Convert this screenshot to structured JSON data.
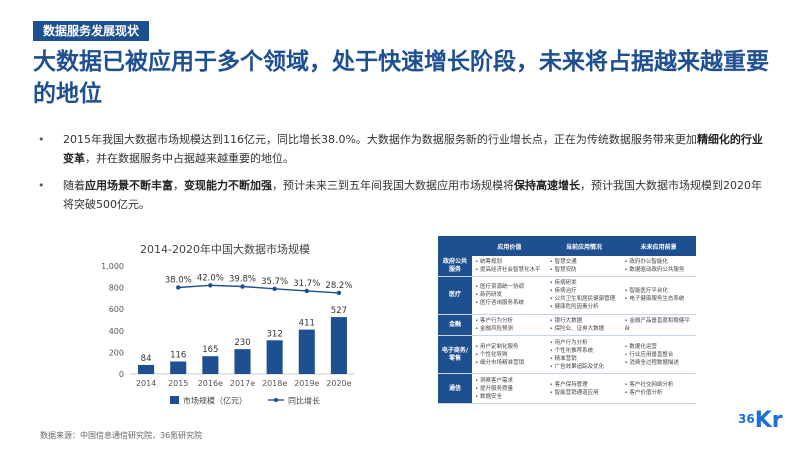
{
  "section_tag": "数据服务发展现状",
  "headline": "大数据已被应用于多个领域，处于快速增长阶段，未来将占据越来越重要的地位",
  "bullets": [
    {
      "parts": [
        {
          "t": "2015年我国大数据市场规模达到116亿元，同比增长38.0%。大数据作为数据服务新的行业增长点，正在为传统数据服务带来更加",
          "b": false
        },
        {
          "t": "精细化的行业变革",
          "b": true
        },
        {
          "t": "，并在数据服务中占据越来越重要的地位。",
          "b": false
        }
      ]
    },
    {
      "parts": [
        {
          "t": "随着",
          "b": false
        },
        {
          "t": "应用场景不断丰富",
          "b": true
        },
        {
          "t": "，",
          "b": false
        },
        {
          "t": "变现能力不断加强",
          "b": true
        },
        {
          "t": "，预计未来三到五年间我国大数据应用市场规模将",
          "b": false
        },
        {
          "t": "保持高速增长",
          "b": true
        },
        {
          "t": "，预计我国大数据市场规模到2020年将突破500亿元。",
          "b": false
        }
      ]
    }
  ],
  "chart_data": {
    "type": "bar",
    "title": "2014-2020年中国大数据市场规模",
    "categories": [
      "2014",
      "2015",
      "2016e",
      "2017e",
      "2018e",
      "2019e",
      "2020e"
    ],
    "series": [
      {
        "name": "市场规模（亿元）",
        "type": "bar",
        "values": [
          84,
          116,
          165,
          230,
          312,
          411,
          527
        ]
      },
      {
        "name": "同比增长",
        "type": "line",
        "values": [
          null,
          38.0,
          42.0,
          39.8,
          35.7,
          31.7,
          28.2
        ],
        "labels": [
          "",
          "38.0%",
          "42.0%",
          "39.8%",
          "35.7%",
          "31.7%",
          "28.2%"
        ]
      }
    ],
    "yticks": [
      "0",
      "200",
      "400",
      "600",
      "800",
      "1,000"
    ],
    "ylim": [
      0,
      1000
    ],
    "bar_color": "#1d4f91",
    "line_color": "#1d4f91",
    "legend_position": "bottom"
  },
  "table": {
    "headers": [
      "",
      "应用价值",
      "当前应用情况",
      "未来应用前景"
    ],
    "rows": [
      {
        "cat": "政府公共服务",
        "c1": [
          "统筹规划",
          "提高经济社会智慧化水平"
        ],
        "c2": [
          "智慧交通",
          "智慧安防"
        ],
        "c3": [
          "政府办公智能化",
          "数据驱动政府公共服务"
        ]
      },
      {
        "cat": "医疗",
        "c1": [
          "医疗资源统一协调",
          "新药研发",
          "医疗咨询服务系统"
        ],
        "c2": [
          "疾病研发",
          "疾病治疗",
          "公共卫生和居民健康管理",
          "健康危险因素分析"
        ],
        "c3": [
          "智能医疗平台化",
          "电子健康服务生态系统"
        ]
      },
      {
        "cat": "金融",
        "c1": [
          "客户行为分析",
          "金融风险预测"
        ],
        "c2": [
          "银行大数据",
          "保险业、证券大数据"
        ],
        "c3": [
          "金融产品垂直度和稳健平台"
        ]
      },
      {
        "cat": "电子商务/零售",
        "c1": [
          "用户定制化服务",
          "个性化导购",
          "细分市场精准营销"
        ],
        "c2": [
          "用户行为分析",
          "个性化推荐系统",
          "精准营销",
          "广告效果追踪及优化"
        ],
        "c3": [
          "数据化运营",
          "行业应用垂直整合",
          "消费全过程数据描述"
        ]
      },
      {
        "cat": "通信",
        "c1": [
          "洞察客户需求",
          "提升服务质量",
          "数据安全"
        ],
        "c2": [
          "客户保持管理",
          "智能营销通道应用"
        ],
        "c3": [
          "客户社交网络分析",
          "客户价值分析"
        ]
      }
    ]
  },
  "source": "数据来源：中国信息通信研究院，36氪研究院",
  "logo": {
    "num": "36",
    "kr": "Kr"
  }
}
